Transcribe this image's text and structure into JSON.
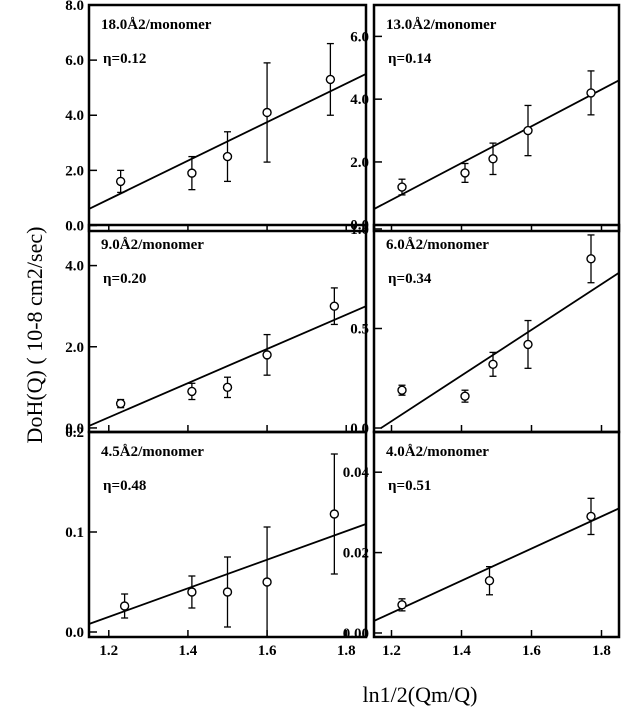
{
  "ylabel": "DoH(Q) ( 10-8 cm2/sec)",
  "xlabel": "ln1/2(Qm/Q)",
  "chart_data": [
    {
      "type": "scatter",
      "title": "18.0Å2/monomer",
      "eta": "η=0.12",
      "xlim": [
        1.15,
        1.85
      ],
      "ylim": [
        -0.2,
        8.0
      ],
      "xticks": [
        "1.2",
        "1.4",
        "1.6",
        "1.8"
      ],
      "xtick_values": [
        1.2,
        1.4,
        1.6,
        1.8
      ],
      "yticks": [
        "0.0",
        "2.0",
        "4.0",
        "6.0",
        "8.0"
      ],
      "ytick_values": [
        0.0,
        2.0,
        4.0,
        6.0,
        8.0
      ],
      "points": [
        {
          "x": 1.23,
          "y": 1.6,
          "err": 0.4
        },
        {
          "x": 1.41,
          "y": 1.9,
          "err": 0.6
        },
        {
          "x": 1.5,
          "y": 2.5,
          "err": 0.9
        },
        {
          "x": 1.6,
          "y": 4.1,
          "err": 1.8
        },
        {
          "x": 1.76,
          "y": 5.3,
          "err": 1.3
        }
      ],
      "fit": {
        "x": [
          1.15,
          1.85
        ],
        "y": [
          0.6,
          5.5
        ]
      }
    },
    {
      "type": "scatter",
      "title": "13.0Å2/monomer",
      "eta": "η=0.14",
      "xlim": [
        1.15,
        1.85
      ],
      "ylim": [
        -0.2,
        7.0
      ],
      "xticks": [
        "1.2",
        "1.4",
        "1.6",
        "1.8"
      ],
      "xtick_values": [
        1.2,
        1.4,
        1.6,
        1.8
      ],
      "yticks": [
        "0.0",
        "2.0",
        "4.0",
        "6.0"
      ],
      "ytick_values": [
        0.0,
        2.0,
        4.0,
        6.0
      ],
      "points": [
        {
          "x": 1.23,
          "y": 1.2,
          "err": 0.25
        },
        {
          "x": 1.41,
          "y": 1.65,
          "err": 0.3
        },
        {
          "x": 1.49,
          "y": 2.1,
          "err": 0.5
        },
        {
          "x": 1.59,
          "y": 3.0,
          "err": 0.8
        },
        {
          "x": 1.77,
          "y": 4.2,
          "err": 0.7
        }
      ],
      "fit": {
        "x": [
          1.15,
          1.85
        ],
        "y": [
          0.5,
          4.6
        ]
      }
    },
    {
      "type": "scatter",
      "title": "9.0Å2/monomer",
      "eta": "η=0.20",
      "xlim": [
        1.15,
        1.85
      ],
      "ylim": [
        -0.1,
        5.0
      ],
      "xticks": [
        "1.2",
        "1.4",
        "1.6",
        "1.8"
      ],
      "xtick_values": [
        1.2,
        1.4,
        1.6,
        1.8
      ],
      "yticks": [
        "0.0",
        "2.0",
        "4.0"
      ],
      "ytick_values": [
        0.0,
        2.0,
        4.0
      ],
      "points": [
        {
          "x": 1.23,
          "y": 0.6,
          "err": 0.1
        },
        {
          "x": 1.41,
          "y": 0.9,
          "err": 0.2
        },
        {
          "x": 1.5,
          "y": 1.0,
          "err": 0.25
        },
        {
          "x": 1.6,
          "y": 1.8,
          "err": 0.5
        },
        {
          "x": 1.77,
          "y": 3.0,
          "err": 0.45
        }
      ],
      "fit": {
        "x": [
          1.15,
          1.85
        ],
        "y": [
          0.05,
          3.0
        ]
      }
    },
    {
      "type": "scatter",
      "title": "6.0Å2/monomer",
      "eta": "η=0.34",
      "xlim": [
        1.15,
        1.85
      ],
      "ylim": [
        -0.02,
        1.02
      ],
      "xticks": [
        "1.2",
        "1.4",
        "1.6",
        "1.8"
      ],
      "xtick_values": [
        1.2,
        1.4,
        1.6,
        1.8
      ],
      "yticks": [
        "0.0",
        "0.5",
        "1.0"
      ],
      "ytick_values": [
        0.0,
        0.5,
        1.0
      ],
      "points": [
        {
          "x": 1.23,
          "y": 0.19,
          "err": 0.025
        },
        {
          "x": 1.41,
          "y": 0.16,
          "err": 0.03
        },
        {
          "x": 1.49,
          "y": 0.32,
          "err": 0.06
        },
        {
          "x": 1.59,
          "y": 0.42,
          "err": 0.12
        },
        {
          "x": 1.77,
          "y": 0.85,
          "err": 0.12
        }
      ],
      "fit": {
        "x": [
          1.17,
          1.85
        ],
        "y": [
          0.0,
          0.78
        ]
      }
    },
    {
      "type": "scatter",
      "title": "4.5Å2/monomer",
      "eta": "η=0.48",
      "xlim": [
        1.15,
        1.85
      ],
      "ylim": [
        -0.005,
        0.2
      ],
      "xticks": [
        "1.2",
        "1.4",
        "1.6",
        "1.8"
      ],
      "xtick_values": [
        1.2,
        1.4,
        1.6,
        1.8
      ],
      "yticks": [
        "0.0",
        "0.1",
        "0.2"
      ],
      "ytick_values": [
        0.0,
        0.1,
        0.2
      ],
      "points": [
        {
          "x": 1.24,
          "y": 0.026,
          "err": 0.012
        },
        {
          "x": 1.41,
          "y": 0.04,
          "err": 0.016
        },
        {
          "x": 1.5,
          "y": 0.04,
          "err": 0.035
        },
        {
          "x": 1.6,
          "y": 0.05,
          "err": 0.055
        },
        {
          "x": 1.77,
          "y": 0.118,
          "err": 0.06
        }
      ],
      "fit": {
        "x": [
          1.15,
          1.85
        ],
        "y": [
          0.008,
          0.108
        ]
      }
    },
    {
      "type": "scatter",
      "title": "4.0Å2/monomer",
      "eta": "η=0.51",
      "xlim": [
        1.15,
        1.85
      ],
      "ylim": [
        -0.001,
        0.05
      ],
      "xticks": [
        "1.2",
        "1.4",
        "1.6",
        "1.8"
      ],
      "xtick_values": [
        1.2,
        1.4,
        1.6,
        1.8
      ],
      "yticks": [
        "0.00",
        "0.02",
        "0.04"
      ],
      "ytick_values": [
        0.0,
        0.02,
        0.04
      ],
      "points": [
        {
          "x": 1.23,
          "y": 0.007,
          "err": 0.0015
        },
        {
          "x": 1.48,
          "y": 0.013,
          "err": 0.0035
        },
        {
          "x": 1.77,
          "y": 0.029,
          "err": 0.0045
        }
      ],
      "fit": {
        "x": [
          1.15,
          1.85
        ],
        "y": [
          0.003,
          0.031
        ]
      }
    }
  ]
}
